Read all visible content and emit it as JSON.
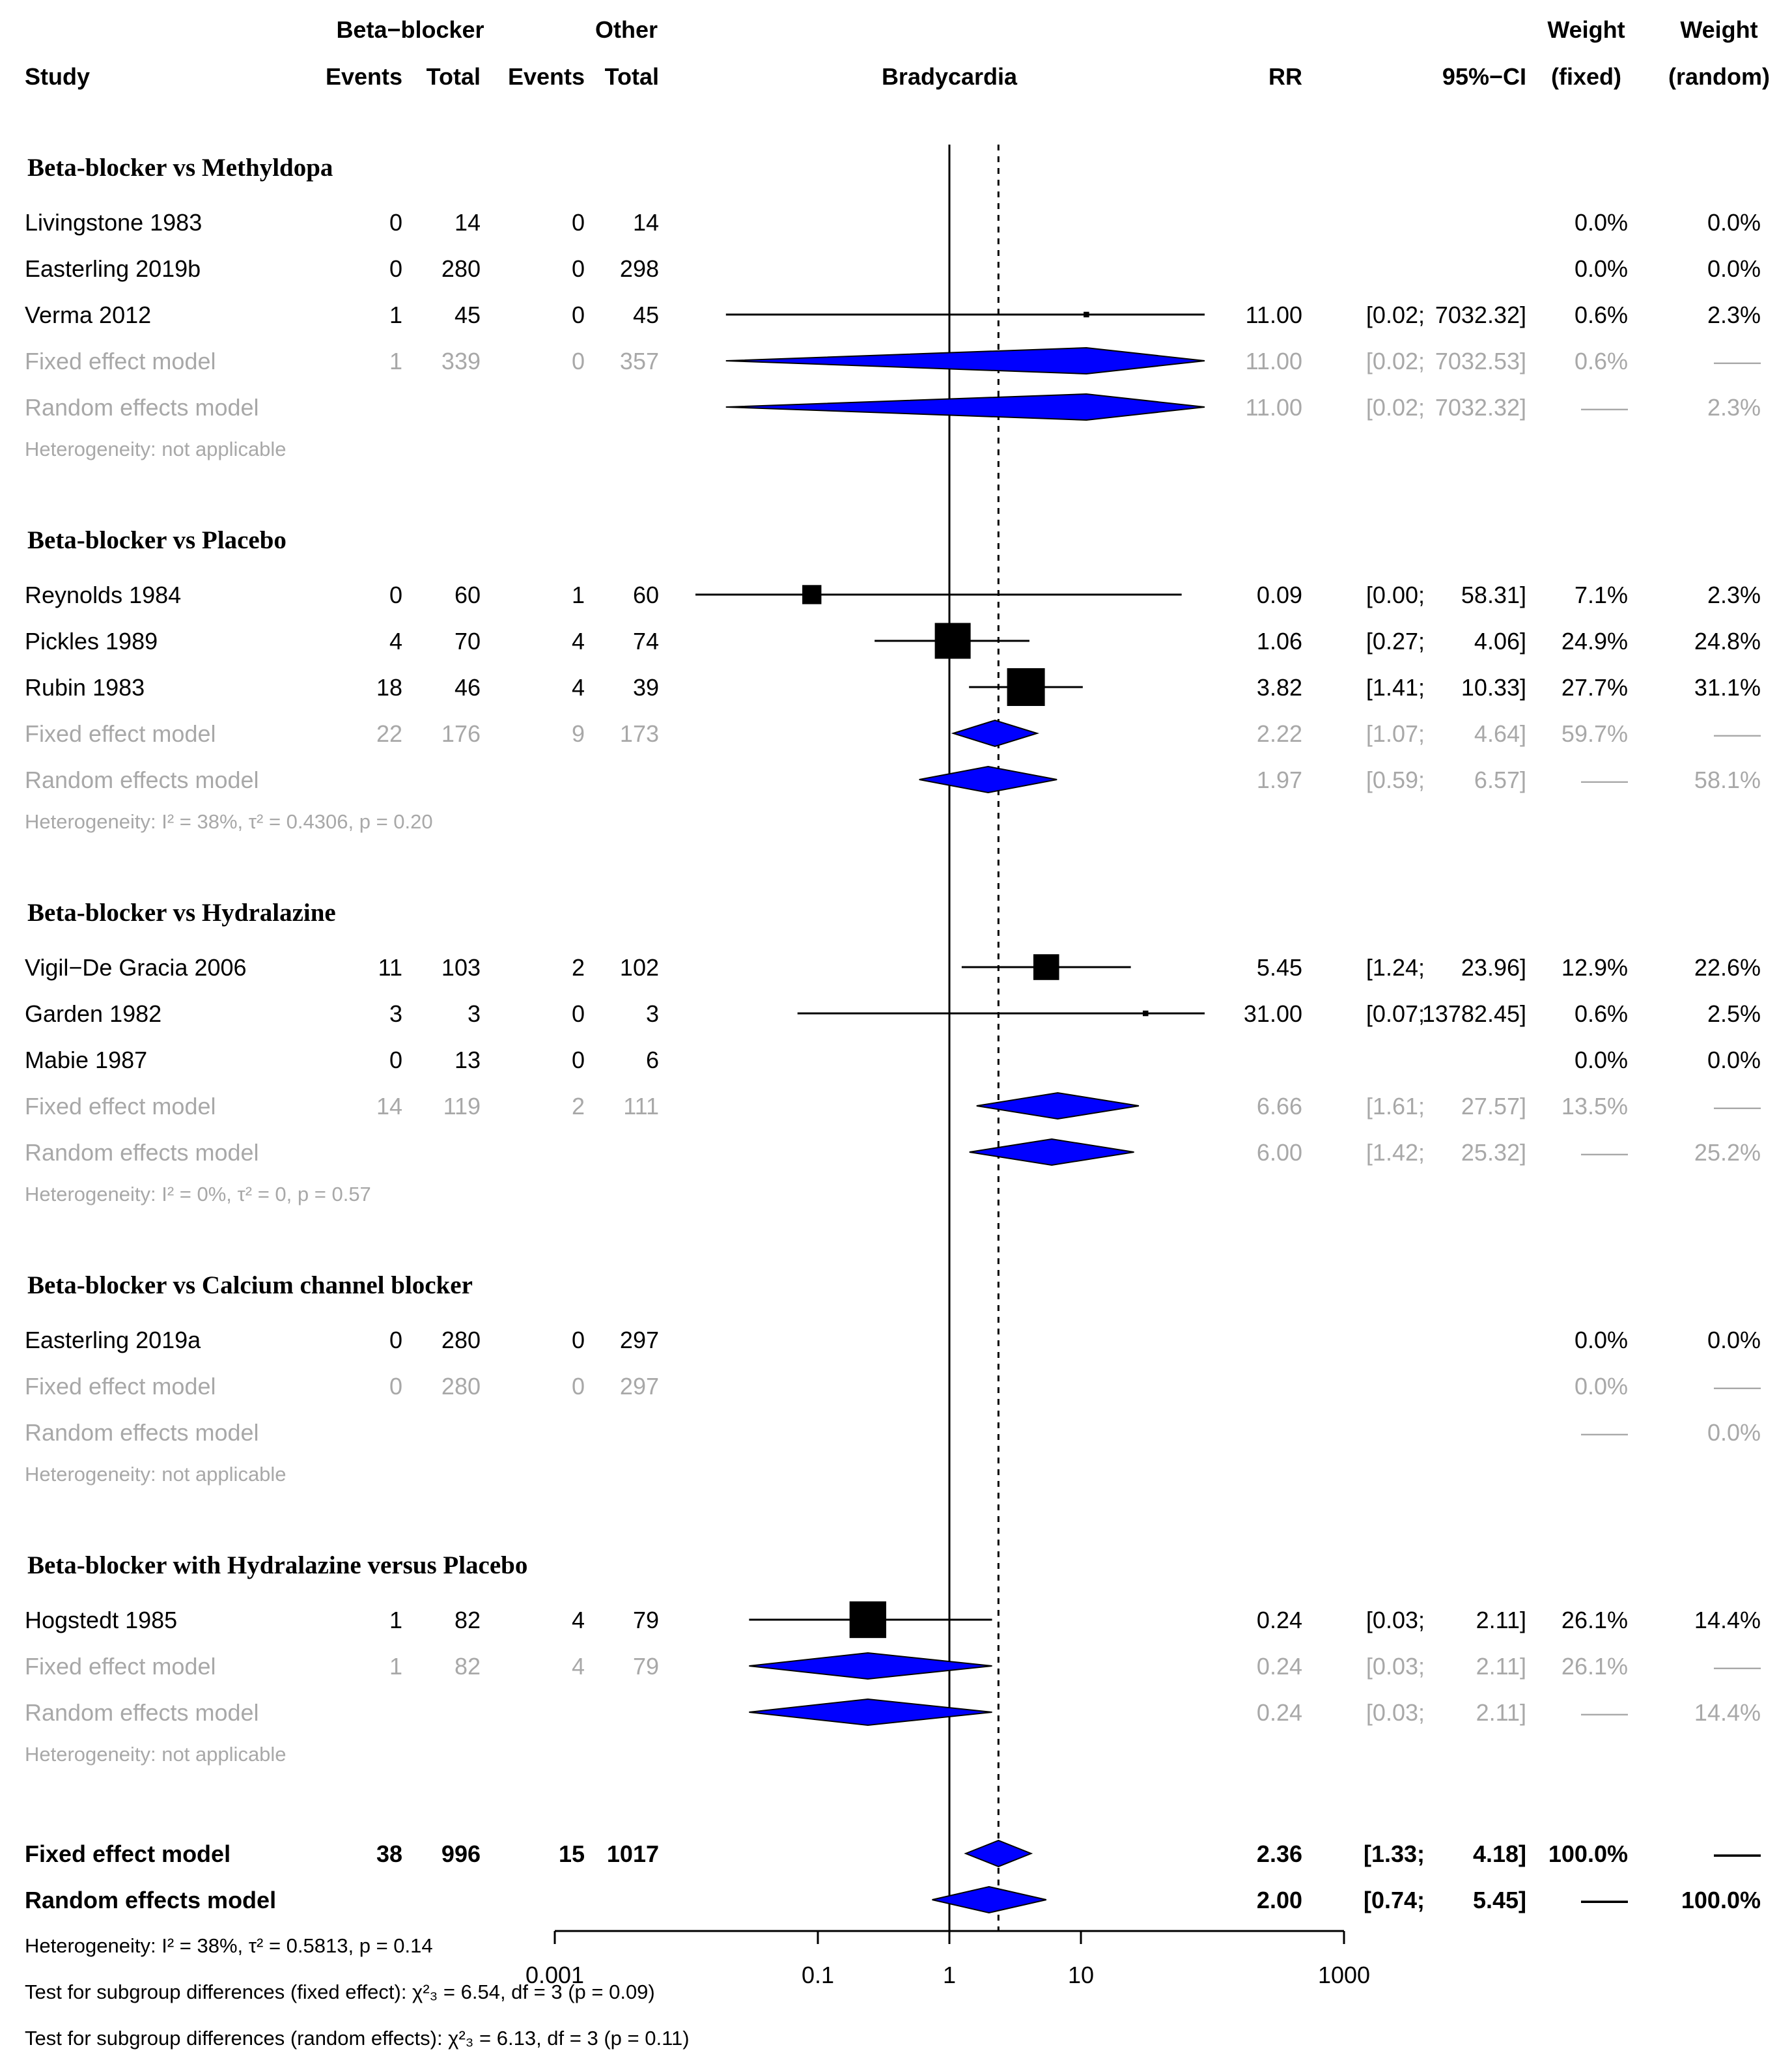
{
  "header": {
    "group1": "Beta−blocker",
    "group2": "Other",
    "study": "Study",
    "events1": "Events",
    "total1": "Total",
    "events2": "Events",
    "total2": "Total",
    "outcome": "Bradycardia",
    "rr": "RR",
    "ci": "95%−CI",
    "weight": "Weight",
    "fixed": "(fixed)",
    "random": "(random)"
  },
  "chart_data": {
    "type": "forest",
    "measure": "RR",
    "outcome": "Bradycardia",
    "x_scale": "log10",
    "xlim": [
      0.001,
      1000
    ],
    "x_ticks": [
      0.001,
      0.1,
      1,
      10,
      1000
    ],
    "x_tick_labels": [
      "0.001",
      "0.1",
      "1",
      "10",
      "1000"
    ],
    "overall_rr": 2.36,
    "subgroups": [
      {
        "title": "Beta-blocker vs Methyldopa",
        "studies": [
          {
            "name": "Livingstone 1983",
            "e1": "0",
            "t1": "14",
            "e2": "0",
            "t2": "14",
            "rr": "",
            "lo": "",
            "hi": "",
            "wf": "0.0%",
            "wr": "0.0%"
          },
          {
            "name": "Easterling 2019b",
            "e1": "0",
            "t1": "280",
            "e2": "0",
            "t2": "298",
            "rr": "",
            "lo": "",
            "hi": "",
            "wf": "0.0%",
            "wr": "0.0%"
          },
          {
            "name": "Verma 2012",
            "e1": "1",
            "t1": "45",
            "e2": "0",
            "t2": "45",
            "rr": "11.00",
            "lo": "[0.02;",
            "hi": "7032.32]",
            "wf": "0.6%",
            "wr": "2.3%"
          }
        ],
        "fixed": {
          "label": "Fixed effect model",
          "e1": "1",
          "t1": "339",
          "e2": "0",
          "t2": "357",
          "rr": "11.00",
          "lo": "[0.02;",
          "hi": "7032.53]",
          "wf": "0.6%",
          "wr": "——"
        },
        "random": {
          "label": "Random effects model",
          "rr": "11.00",
          "lo": "[0.02;",
          "hi": "7032.32]",
          "wf": "——",
          "wr": "2.3%"
        },
        "het": "Heterogeneity: not applicable"
      },
      {
        "title": "Beta-blocker vs Placebo",
        "studies": [
          {
            "name": "Reynolds 1984",
            "e1": "0",
            "t1": "60",
            "e2": "1",
            "t2": "60",
            "rr": "0.09",
            "lo": "[0.00;",
            "hi": "58.31]",
            "wf": "7.1%",
            "wr": "2.3%"
          },
          {
            "name": "Pickles 1989",
            "e1": "4",
            "t1": "70",
            "e2": "4",
            "t2": "74",
            "rr": "1.06",
            "lo": "[0.27;",
            "hi": "4.06]",
            "wf": "24.9%",
            "wr": "24.8%"
          },
          {
            "name": "Rubin 1983",
            "e1": "18",
            "t1": "46",
            "e2": "4",
            "t2": "39",
            "rr": "3.82",
            "lo": "[1.41;",
            "hi": "10.33]",
            "wf": "27.7%",
            "wr": "31.1%"
          }
        ],
        "fixed": {
          "label": "Fixed effect model",
          "e1": "22",
          "t1": "176",
          "e2": "9",
          "t2": "173",
          "rr": "2.22",
          "lo": "[1.07;",
          "hi": "4.64]",
          "wf": "59.7%",
          "wr": "——"
        },
        "random": {
          "label": "Random effects model",
          "rr": "1.97",
          "lo": "[0.59;",
          "hi": "6.57]",
          "wf": "——",
          "wr": "58.1%"
        },
        "het": "Heterogeneity: I² = 38%, τ² = 0.4306, p = 0.20"
      },
      {
        "title": "Beta-blocker vs Hydralazine",
        "studies": [
          {
            "name": "Vigil−De Gracia 2006",
            "e1": "11",
            "t1": "103",
            "e2": "2",
            "t2": "102",
            "rr": "5.45",
            "lo": "[1.24;",
            "hi": "23.96]",
            "wf": "12.9%",
            "wr": "22.6%"
          },
          {
            "name": "Garden 1982",
            "e1": "3",
            "t1": "3",
            "e2": "0",
            "t2": "3",
            "rr": "31.00",
            "lo": "[0.07;",
            "hi": "13782.45]",
            "wf": "0.6%",
            "wr": "2.5%"
          },
          {
            "name": "Mabie 1987",
            "e1": "0",
            "t1": "13",
            "e2": "0",
            "t2": "6",
            "rr": "",
            "lo": "",
            "hi": "",
            "wf": "0.0%",
            "wr": "0.0%"
          }
        ],
        "fixed": {
          "label": "Fixed effect model",
          "e1": "14",
          "t1": "119",
          "e2": "2",
          "t2": "111",
          "rr": "6.66",
          "lo": "[1.61;",
          "hi": "27.57]",
          "wf": "13.5%",
          "wr": "——"
        },
        "random": {
          "label": "Random effects model",
          "rr": "6.00",
          "lo": "[1.42;",
          "hi": "25.32]",
          "wf": "——",
          "wr": "25.2%"
        },
        "het": "Heterogeneity: I² = 0%, τ² = 0, p = 0.57"
      },
      {
        "title": "Beta-blocker vs Calcium channel blocker",
        "studies": [
          {
            "name": "Easterling 2019a",
            "e1": "0",
            "t1": "280",
            "e2": "0",
            "t2": "297",
            "rr": "",
            "lo": "",
            "hi": "",
            "wf": "0.0%",
            "wr": "0.0%"
          }
        ],
        "fixed": {
          "label": "Fixed effect model",
          "e1": "0",
          "t1": "280",
          "e2": "0",
          "t2": "297",
          "rr": "",
          "lo": "",
          "hi": "",
          "wf": "0.0%",
          "wr": "——"
        },
        "random": {
          "label": "Random effects model",
          "rr": "",
          "lo": "",
          "hi": "",
          "wf": "——",
          "wr": "0.0%"
        },
        "het": "Heterogeneity: not applicable"
      },
      {
        "title": "Beta-blocker with Hydralazine versus Placebo",
        "studies": [
          {
            "name": "Hogstedt 1985",
            "e1": "1",
            "t1": "82",
            "e2": "4",
            "t2": "79",
            "rr": "0.24",
            "lo": "[0.03;",
            "hi": "2.11]",
            "wf": "26.1%",
            "wr": "14.4%"
          }
        ],
        "fixed": {
          "label": "Fixed effect model",
          "e1": "1",
          "t1": "82",
          "e2": "4",
          "t2": "79",
          "rr": "0.24",
          "lo": "[0.03;",
          "hi": "2.11]",
          "wf": "26.1%",
          "wr": "——"
        },
        "random": {
          "label": "Random effects model",
          "rr": "0.24",
          "lo": "[0.03;",
          "hi": "2.11]",
          "wf": "——",
          "wr": "14.4%"
        },
        "het": "Heterogeneity: not applicable"
      }
    ],
    "overall": {
      "fixed": {
        "label": "Fixed effect model",
        "e1": "38",
        "t1": "996",
        "e2": "15",
        "t2": "1017",
        "rr": "2.36",
        "lo": "[1.33;",
        "hi": "4.18]",
        "wf": "100.0%",
        "wr": "——"
      },
      "random": {
        "label": "Random effects model",
        "rr": "2.00",
        "lo": "[0.74;",
        "hi": "5.45]",
        "wf": "——",
        "wr": "100.0%"
      },
      "het": "Heterogeneity: I² = 38%, τ² = 0.5813, p = 0.14",
      "test_fixed": "Test for subgroup differences (fixed effect): χ²₃ = 6.54, df = 3 (p = 0.09)",
      "test_random": "Test for subgroup differences (random effects): χ²₃ = 6.13, df = 3 (p = 0.11)"
    }
  }
}
